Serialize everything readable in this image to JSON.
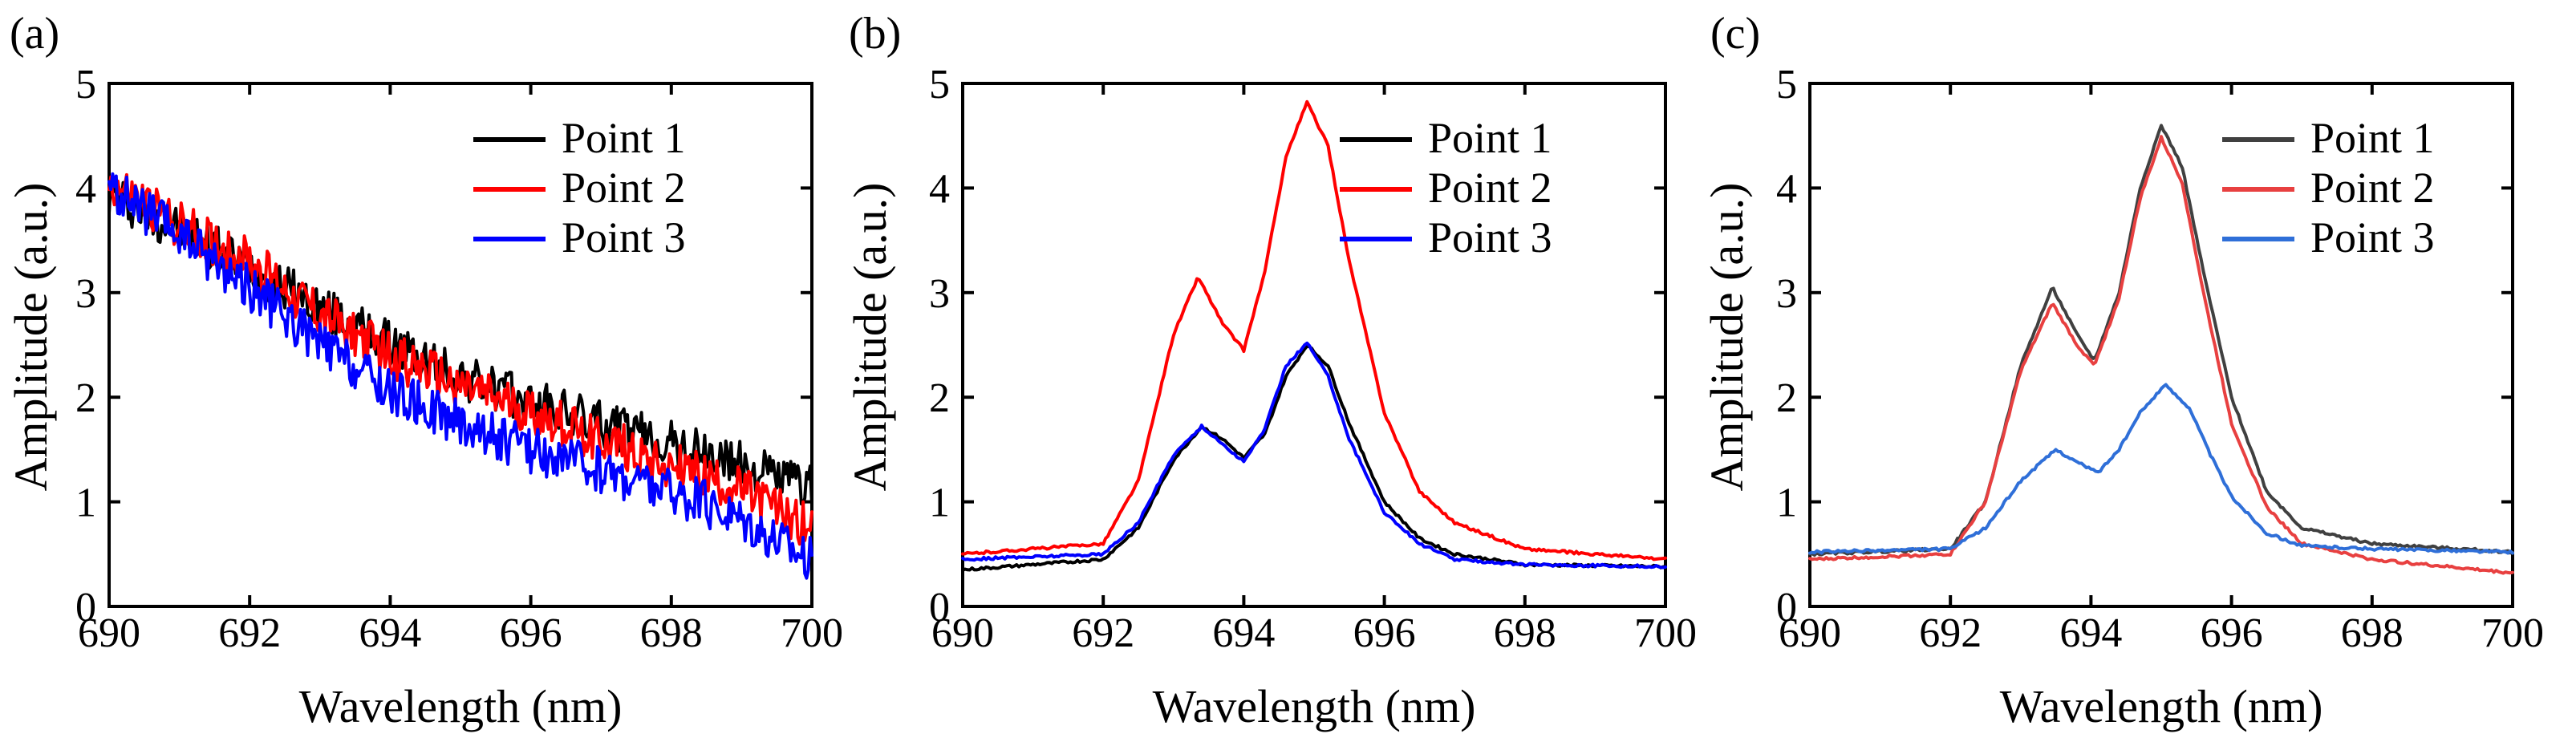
{
  "chart_data": [
    {
      "type": "line",
      "panel_label": "(a)",
      "xlabel": "Wavelength (nm)",
      "ylabel": "Amplitude (a.u.)",
      "xlim": [
        690,
        700
      ],
      "ylim": [
        0,
        5
      ],
      "xticks": [
        690,
        692,
        694,
        696,
        698,
        700
      ],
      "yticks": [
        0,
        1,
        2,
        3,
        4,
        5
      ],
      "x_tick_labels": [
        "690",
        "692",
        "694",
        "696",
        "698",
        "700"
      ],
      "y_tick_labels": [
        "0",
        "1",
        "2",
        "3",
        "4",
        "5"
      ],
      "legend_position": "top-right",
      "noisy": true,
      "series": [
        {
          "name": "Point 1",
          "color": "#000000",
          "x": [
            690,
            691,
            692,
            693,
            694,
            695,
            696,
            697,
            698,
            699,
            700
          ],
          "y": [
            3.95,
            3.6,
            3.25,
            2.85,
            2.5,
            2.2,
            1.95,
            1.75,
            1.55,
            1.35,
            1.15
          ]
        },
        {
          "name": "Point 2",
          "color": "#ff0000",
          "x": [
            690,
            691,
            692,
            693,
            694,
            695,
            696,
            697,
            698,
            699,
            700
          ],
          "y": [
            4.05,
            3.65,
            3.3,
            2.8,
            2.4,
            2.1,
            1.85,
            1.6,
            1.35,
            1.1,
            0.75
          ]
        },
        {
          "name": "Point 3",
          "color": "#0000ff",
          "x": [
            690,
            691,
            692,
            693,
            694,
            695,
            696,
            697,
            698,
            699,
            700
          ],
          "y": [
            4.0,
            3.55,
            3.05,
            2.5,
            2.05,
            1.75,
            1.5,
            1.3,
            1.1,
            0.85,
            0.45
          ]
        }
      ]
    },
    {
      "type": "line",
      "panel_label": "(b)",
      "xlabel": "Wavelength (nm)",
      "ylabel": "Amplitude (a.u.)",
      "xlim": [
        690,
        700
      ],
      "ylim": [
        0,
        5
      ],
      "xticks": [
        690,
        692,
        694,
        696,
        698,
        700
      ],
      "yticks": [
        0,
        1,
        2,
        3,
        4,
        5
      ],
      "x_tick_labels": [
        "690",
        "692",
        "694",
        "696",
        "698",
        "700"
      ],
      "y_tick_labels": [
        "0",
        "1",
        "2",
        "3",
        "4",
        "5"
      ],
      "legend_position": "top-right",
      "noisy": false,
      "series": [
        {
          "name": "Point 1",
          "color": "#000000",
          "x": [
            690,
            692,
            692.5,
            693,
            693.4,
            693.7,
            694,
            694.3,
            694.6,
            694.9,
            695.2,
            695.5,
            696,
            696.5,
            697,
            698,
            700
          ],
          "y": [
            0.35,
            0.45,
            0.75,
            1.4,
            1.72,
            1.6,
            1.42,
            1.65,
            2.2,
            2.5,
            2.3,
            1.75,
            1.0,
            0.65,
            0.5,
            0.4,
            0.38
          ]
        },
        {
          "name": "Point 2",
          "color": "#ff0000",
          "x": [
            690,
            692,
            692.5,
            693,
            693.35,
            693.7,
            694,
            694.3,
            694.6,
            694.9,
            695.2,
            695.5,
            696,
            696.5,
            697,
            698,
            700
          ],
          "y": [
            0.5,
            0.6,
            1.2,
            2.6,
            3.15,
            2.7,
            2.45,
            3.2,
            4.3,
            4.82,
            4.4,
            3.3,
            1.85,
            1.1,
            0.8,
            0.55,
            0.45
          ]
        },
        {
          "name": "Point 3",
          "color": "#0000ff",
          "x": [
            690,
            692,
            692.5,
            693,
            693.4,
            693.7,
            694,
            694.3,
            694.6,
            694.9,
            695.2,
            695.5,
            696,
            696.5,
            697,
            698,
            700
          ],
          "y": [
            0.45,
            0.5,
            0.8,
            1.45,
            1.72,
            1.55,
            1.38,
            1.7,
            2.3,
            2.52,
            2.2,
            1.6,
            0.9,
            0.6,
            0.45,
            0.4,
            0.38
          ]
        }
      ]
    },
    {
      "type": "line",
      "panel_label": "(c)",
      "xlabel": "Wavelength  (nm)",
      "ylabel": "Amplitude (a.u.)",
      "xlim": [
        690,
        700
      ],
      "ylim": [
        0,
        5
      ],
      "xticks": [
        690,
        692,
        694,
        696,
        698,
        700
      ],
      "yticks": [
        0,
        1,
        2,
        3,
        4,
        5
      ],
      "x_tick_labels": [
        "690",
        "692",
        "694",
        "696",
        "698",
        "700"
      ],
      "y_tick_labels": [
        "0",
        "1",
        "2",
        "3",
        "4",
        "5"
      ],
      "legend_position": "top-right",
      "noisy": false,
      "series": [
        {
          "name": "Point 1",
          "color": "#404040",
          "x": [
            690,
            692,
            692.5,
            693,
            693.45,
            693.8,
            694.05,
            694.4,
            694.7,
            695,
            695.3,
            695.6,
            696,
            696.5,
            697,
            698,
            700
          ],
          "y": [
            0.5,
            0.55,
            1.0,
            2.3,
            3.05,
            2.6,
            2.35,
            3.0,
            4.0,
            4.6,
            4.2,
            3.2,
            2.0,
            1.1,
            0.75,
            0.6,
            0.52
          ]
        },
        {
          "name": "Point 2",
          "color": "#e84040",
          "x": [
            690,
            692,
            692.5,
            693,
            693.45,
            693.8,
            694.05,
            694.4,
            694.7,
            695,
            695.3,
            695.6,
            696,
            696.5,
            697,
            698,
            700
          ],
          "y": [
            0.45,
            0.5,
            1.0,
            2.25,
            2.9,
            2.5,
            2.3,
            2.95,
            3.9,
            4.48,
            4.05,
            3.0,
            1.75,
            0.95,
            0.6,
            0.45,
            0.32
          ]
        },
        {
          "name": "Point 3",
          "color": "#2f6fd8",
          "x": [
            690,
            692,
            692.5,
            693,
            693.5,
            693.8,
            694.1,
            694.4,
            694.7,
            695.05,
            695.4,
            695.7,
            696,
            696.5,
            697,
            698,
            700
          ],
          "y": [
            0.52,
            0.55,
            0.75,
            1.2,
            1.5,
            1.38,
            1.28,
            1.5,
            1.85,
            2.12,
            1.9,
            1.45,
            1.05,
            0.7,
            0.58,
            0.55,
            0.52
          ]
        }
      ]
    }
  ]
}
